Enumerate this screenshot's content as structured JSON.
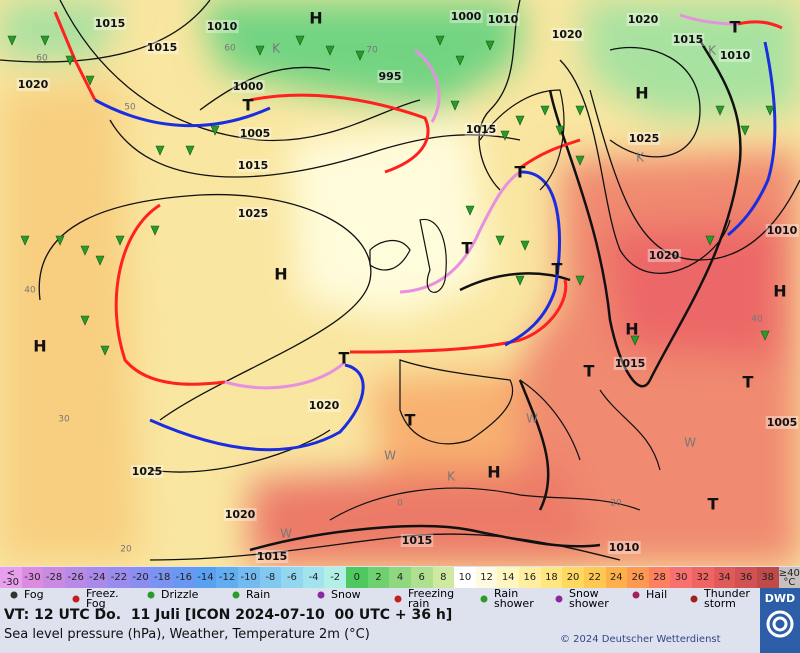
{
  "map": {
    "isobar_labels": [
      1015,
      1010,
      1000,
      1010,
      1020,
      1015,
      1020,
      995,
      1000,
      1015,
      1010,
      1020,
      1005,
      1015,
      1025,
      1015,
      1025,
      1020,
      1010,
      1020,
      1015,
      1005,
      1025,
      1020,
      1015,
      1015,
      1010
    ],
    "grid_labels": [
      60,
      70,
      60,
      50,
      40,
      30,
      20,
      0,
      20,
      40
    ],
    "highs": [
      "H",
      "H",
      "H",
      "H",
      "H",
      "H",
      "H"
    ],
    "troughs": [
      "T",
      "T",
      "T",
      "T",
      "T",
      "T",
      "T",
      "T",
      "T",
      "T"
    ],
    "cold_markers": [
      "K",
      "K",
      "K",
      "K"
    ],
    "warm_markers": [
      "W",
      "W",
      "W",
      "W"
    ]
  },
  "temperature_scale": {
    "labels": [
      "< -30",
      -30,
      -28,
      -26,
      -24,
      -22,
      -20,
      -18,
      -16,
      -14,
      -12,
      -10,
      -8,
      -6,
      -4,
      -2,
      0,
      2,
      4,
      6,
      8,
      10,
      12,
      14,
      16,
      18,
      20,
      22,
      24,
      26,
      28,
      30,
      32,
      34,
      36,
      38,
      "≥40 °C"
    ],
    "colors": [
      "#e8a0ee",
      "#d98ce0",
      "#c98ae2",
      "#b88ae6",
      "#a98ae8",
      "#9a8cec",
      "#8a8ef0",
      "#7a92f0",
      "#6a98f0",
      "#5aa0f0",
      "#62acf0",
      "#72baf0",
      "#82c8f0",
      "#92d6f0",
      "#a2e4ee",
      "#b2f0e6",
      "#4fc860",
      "#6fd070",
      "#8fd880",
      "#afe090",
      "#cfeaa0",
      "#ffffff",
      "#fffbe0",
      "#fff6c0",
      "#ffeea0",
      "#ffe680",
      "#ffd860",
      "#ffc850",
      "#ffb048",
      "#ff9850",
      "#ff8060",
      "#f87070",
      "#f06464",
      "#e05a5a",
      "#d05252",
      "#c04a4a",
      "#c8c0c0"
    ]
  },
  "weather_legend": [
    "Fog",
    "Freez. Fog",
    "Drizzle",
    "Rain",
    "Snow",
    "Freezing rain",
    "Rain shower",
    "Snow shower",
    "Hail",
    "Thunder storm"
  ],
  "footer": {
    "valid_time": "VT: 12 UTC Do.  11 Juli [ICON 2024-07-10  00 UTC + 36 h]",
    "description": "Sea level pressure (hPa), Weather, Temperature 2m (°C)",
    "copyright": "© 2024 Deutscher Wetterdienst",
    "logo": "DWD"
  }
}
